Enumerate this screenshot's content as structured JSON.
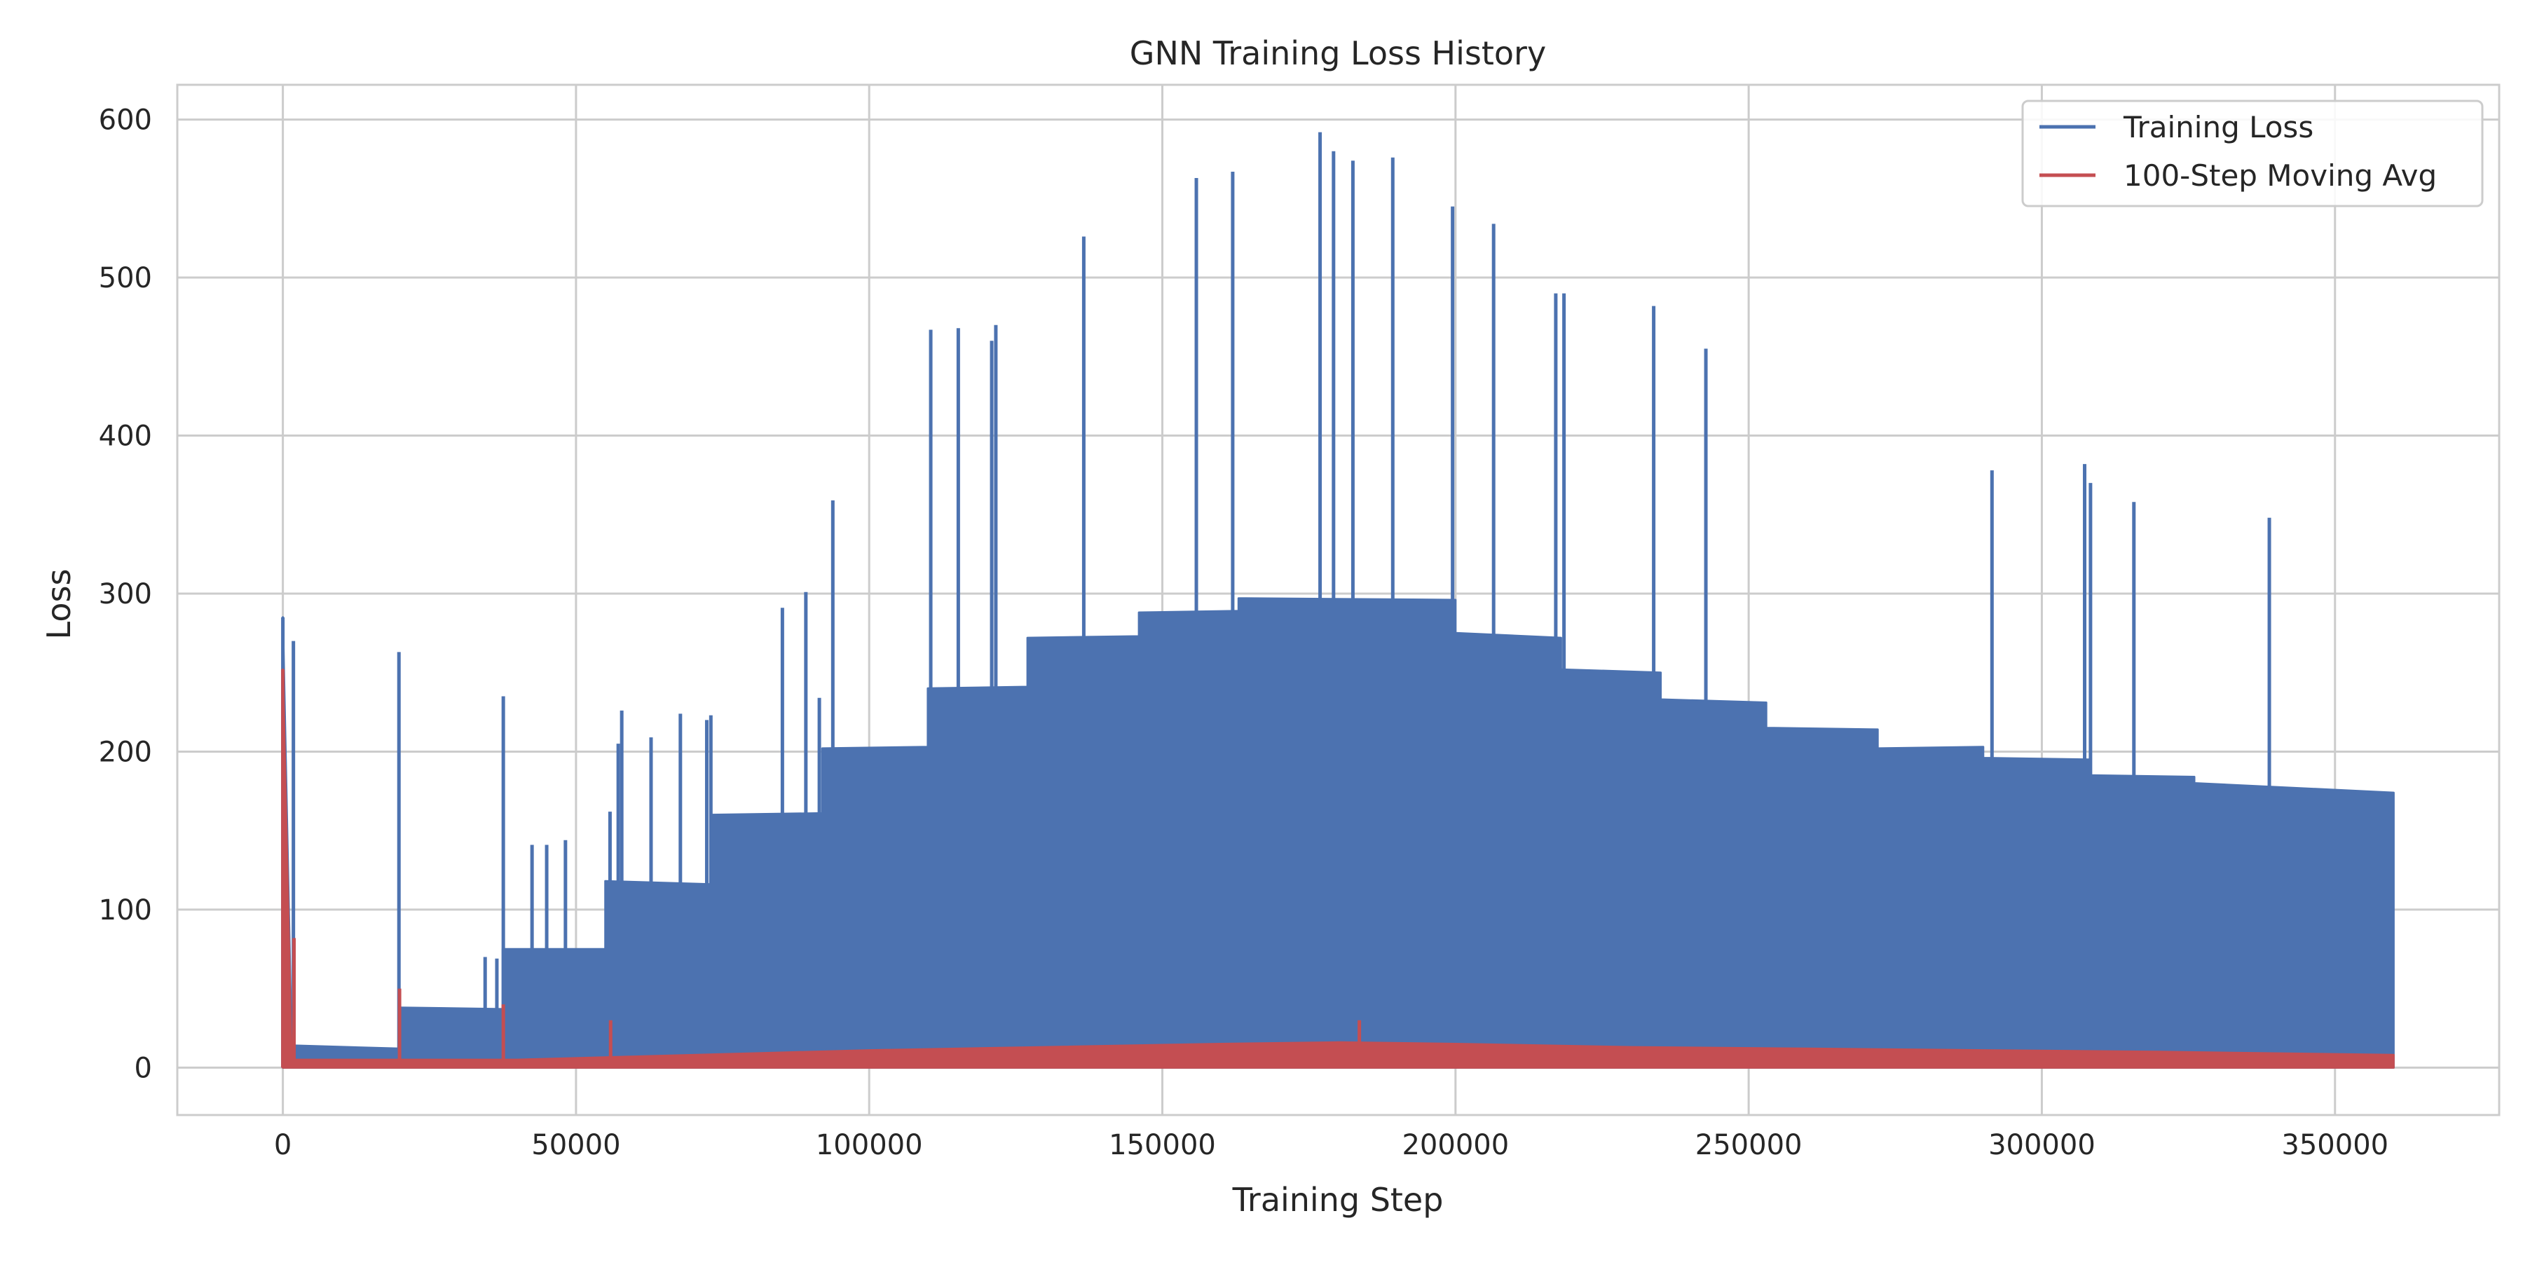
{
  "chart_data": {
    "type": "line",
    "title": "GNN Training Loss History",
    "xlabel": "Training Step",
    "ylabel": "Loss",
    "xlim": [
      -18000,
      378000
    ],
    "ylim": [
      -30,
      622
    ],
    "xticks": [
      0,
      50000,
      100000,
      150000,
      200000,
      250000,
      300000,
      350000
    ],
    "xtick_labels": [
      "0",
      "50000",
      "100000",
      "150000",
      "200000",
      "250000",
      "300000",
      "350000"
    ],
    "yticks": [
      0,
      100,
      200,
      300,
      400,
      500,
      600
    ],
    "ytick_labels": [
      "0",
      "100",
      "200",
      "300",
      "400",
      "500",
      "600"
    ],
    "grid": true,
    "legend_position": "top-right",
    "series": [
      {
        "name": "Training Loss",
        "color": "#4c72b0",
        "style": "dense-noisy-line",
        "envelope": {
          "x": [
            0,
            1500,
            20000,
            20000,
            37500,
            37500,
            55000,
            55000,
            73000,
            73000,
            92000,
            92000,
            110000,
            110000,
            127000,
            127000,
            146000,
            146000,
            163000,
            163000,
            200000,
            200000,
            218000,
            218000,
            235000,
            235000,
            253000,
            253000,
            272000,
            272000,
            290000,
            290000,
            308000,
            308000,
            326000,
            326000,
            360000
          ],
          "upper": [
            285,
            14,
            12,
            38,
            37,
            75,
            75,
            118,
            116,
            160,
            161,
            202,
            203,
            240,
            241,
            272,
            273,
            288,
            289,
            297,
            296,
            275,
            272,
            252,
            250,
            233,
            231,
            215,
            214,
            202,
            203,
            196,
            195,
            185,
            184,
            180,
            174
          ],
          "lower": [
            0,
            0,
            0,
            0,
            0,
            0,
            0,
            0,
            0,
            0,
            0,
            0,
            0,
            0,
            0,
            0,
            0,
            0,
            0,
            0,
            0,
            0,
            0,
            0,
            0,
            0,
            0,
            0,
            0,
            0,
            0,
            0,
            0,
            0,
            0,
            0,
            0
          ]
        },
        "spikes": [
          {
            "x": 0,
            "y": 285
          },
          {
            "x": 1800,
            "y": 270
          },
          {
            "x": 19800,
            "y": 263
          },
          {
            "x": 34500,
            "y": 70
          },
          {
            "x": 36500,
            "y": 69
          },
          {
            "x": 37600,
            "y": 235
          },
          {
            "x": 42500,
            "y": 141
          },
          {
            "x": 45000,
            "y": 141
          },
          {
            "x": 48200,
            "y": 144
          },
          {
            "x": 55800,
            "y": 162
          },
          {
            "x": 57200,
            "y": 205
          },
          {
            "x": 57800,
            "y": 226
          },
          {
            "x": 62800,
            "y": 209
          },
          {
            "x": 67800,
            "y": 224
          },
          {
            "x": 72300,
            "y": 220
          },
          {
            "x": 73000,
            "y": 223
          },
          {
            "x": 85200,
            "y": 291
          },
          {
            "x": 89200,
            "y": 301
          },
          {
            "x": 91500,
            "y": 234
          },
          {
            "x": 93800,
            "y": 359
          },
          {
            "x": 110500,
            "y": 467
          },
          {
            "x": 115200,
            "y": 468
          },
          {
            "x": 120900,
            "y": 460
          },
          {
            "x": 121600,
            "y": 470
          },
          {
            "x": 136600,
            "y": 526
          },
          {
            "x": 155800,
            "y": 563
          },
          {
            "x": 162000,
            "y": 567
          },
          {
            "x": 176900,
            "y": 592
          },
          {
            "x": 179200,
            "y": 580
          },
          {
            "x": 182500,
            "y": 574
          },
          {
            "x": 189300,
            "y": 576
          },
          {
            "x": 199500,
            "y": 545
          },
          {
            "x": 206500,
            "y": 534
          },
          {
            "x": 217100,
            "y": 490
          },
          {
            "x": 218500,
            "y": 490
          },
          {
            "x": 233800,
            "y": 482
          },
          {
            "x": 242700,
            "y": 455
          },
          {
            "x": 291500,
            "y": 378
          },
          {
            "x": 307300,
            "y": 382
          },
          {
            "x": 308300,
            "y": 370
          },
          {
            "x": 315700,
            "y": 358
          },
          {
            "x": 338800,
            "y": 348
          }
        ]
      },
      {
        "name": "100-Step Moving Avg",
        "color": "#c44e52",
        "style": "dense-noisy-line",
        "envelope": {
          "x": [
            0,
            1500,
            20000,
            40000,
            60000,
            80000,
            100000,
            130000,
            160000,
            180000,
            200000,
            230000,
            260000,
            290000,
            320000,
            360000
          ],
          "upper": [
            252,
            5,
            5,
            5,
            7,
            9,
            11,
            13,
            15,
            16,
            15,
            13,
            12,
            11,
            10,
            8
          ],
          "lower": [
            0,
            0,
            0,
            0,
            0,
            0,
            0,
            0,
            0,
            0,
            0,
            0,
            0,
            0,
            0,
            0
          ]
        },
        "spikes": [
          {
            "x": 0,
            "y": 252
          },
          {
            "x": 1900,
            "y": 82
          },
          {
            "x": 19900,
            "y": 50
          },
          {
            "x": 37600,
            "y": 40
          },
          {
            "x": 55900,
            "y": 30
          },
          {
            "x": 183600,
            "y": 30
          }
        ]
      }
    ]
  }
}
